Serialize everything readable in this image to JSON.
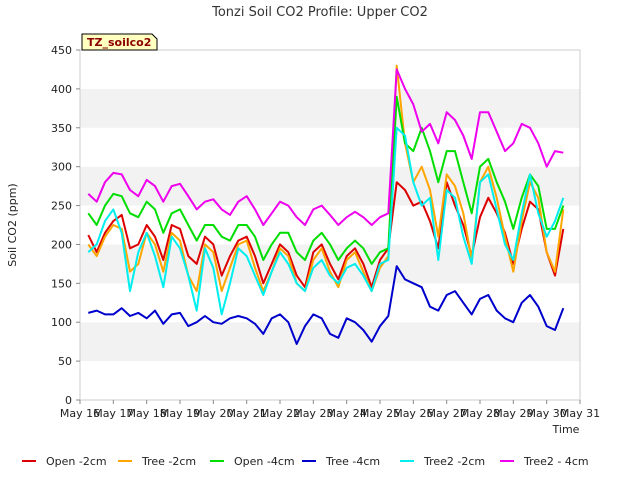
{
  "chart_data": {
    "type": "line",
    "title": "Tonzi Soil CO2 Profile: Upper CO2",
    "xlabel": "Time",
    "ylabel": "Soil CO2 (ppm)",
    "badge": "TZ_soilco2",
    "ylim": [
      0,
      450
    ],
    "yticks": [
      0,
      50,
      100,
      150,
      200,
      250,
      300,
      350,
      400,
      450
    ],
    "xlim": [
      16,
      31
    ],
    "xticks": [
      16,
      17,
      18,
      19,
      20,
      21,
      22,
      23,
      24,
      25,
      26,
      27,
      28,
      29,
      30,
      31
    ],
    "xtick_labels": [
      "May 16",
      "May 17",
      "May 18",
      "May 19",
      "May 20",
      "May 21",
      "May 22",
      "May 23",
      "May 24",
      "May 25",
      "May 26",
      "May 27",
      "May 28",
      "May 29",
      "May 30",
      "May 31"
    ],
    "grid": "horizontal bands",
    "legend_position": "bottom",
    "x": [
      16.25,
      16.5,
      16.75,
      17.0,
      17.25,
      17.5,
      17.75,
      18.0,
      18.25,
      18.5,
      18.75,
      19.0,
      19.25,
      19.5,
      19.75,
      20.0,
      20.25,
      20.5,
      20.75,
      21.0,
      21.25,
      21.5,
      21.75,
      22.0,
      22.25,
      22.5,
      22.75,
      23.0,
      23.25,
      23.5,
      23.75,
      24.0,
      24.25,
      24.5,
      24.75,
      25.0,
      25.25,
      25.5,
      25.75,
      26.0,
      26.25,
      26.5,
      26.75,
      27.0,
      27.25,
      27.5,
      27.75,
      28.0,
      28.25,
      28.5,
      28.75,
      29.0,
      29.25,
      29.5,
      29.75,
      30.0,
      30.25,
      30.5
    ],
    "series": [
      {
        "name": "Open -2cm",
        "color": "#dd0000",
        "values": [
          212,
          190,
          215,
          230,
          238,
          195,
          200,
          225,
          210,
          180,
          225,
          220,
          185,
          175,
          210,
          200,
          160,
          185,
          205,
          210,
          185,
          150,
          175,
          200,
          190,
          160,
          145,
          190,
          200,
          175,
          155,
          185,
          195,
          175,
          145,
          180,
          195,
          280,
          270,
          250,
          255,
          230,
          195,
          280,
          250,
          225,
          185,
          235,
          260,
          240,
          215,
          175,
          220,
          255,
          245,
          190,
          160,
          220
        ]
      },
      {
        "name": "Tree -2cm",
        "color": "#ffa500",
        "values": [
          200,
          185,
          210,
          225,
          220,
          165,
          175,
          215,
          200,
          165,
          215,
          205,
          160,
          140,
          200,
          190,
          140,
          170,
          200,
          205,
          170,
          140,
          165,
          195,
          185,
          150,
          140,
          180,
          195,
          165,
          145,
          180,
          190,
          165,
          140,
          170,
          185,
          430,
          330,
          280,
          300,
          270,
          210,
          290,
          275,
          240,
          180,
          280,
          300,
          260,
          210,
          165,
          230,
          280,
          260,
          190,
          165,
          245
        ]
      },
      {
        "name": "Open -4cm",
        "color": "#00dd00",
        "values": [
          240,
          225,
          250,
          265,
          262,
          240,
          235,
          255,
          245,
          215,
          240,
          245,
          225,
          205,
          225,
          225,
          210,
          205,
          225,
          225,
          210,
          180,
          200,
          215,
          215,
          190,
          180,
          205,
          215,
          200,
          180,
          195,
          205,
          195,
          175,
          190,
          195,
          390,
          330,
          320,
          350,
          320,
          280,
          320,
          320,
          280,
          240,
          300,
          310,
          280,
          255,
          220,
          260,
          290,
          275,
          220,
          220,
          250
        ]
      },
      {
        "name": "Tree -4cm",
        "color": "#0000cc",
        "values": [
          112,
          115,
          110,
          110,
          118,
          108,
          112,
          105,
          115,
          98,
          110,
          112,
          95,
          100,
          108,
          100,
          98,
          105,
          108,
          105,
          98,
          85,
          105,
          110,
          100,
          72,
          95,
          110,
          105,
          85,
          80,
          105,
          100,
          90,
          75,
          95,
          108,
          172,
          155,
          150,
          145,
          120,
          115,
          135,
          140,
          125,
          110,
          130,
          135,
          115,
          105,
          100,
          125,
          135,
          120,
          95,
          90,
          118
        ]
      },
      {
        "name": "Tree2 -2cm",
        "color": "#00eeee",
        "values": [
          190,
          200,
          230,
          245,
          215,
          140,
          190,
          215,
          185,
          145,
          210,
          195,
          160,
          115,
          195,
          170,
          110,
          150,
          195,
          185,
          160,
          135,
          165,
          190,
          175,
          150,
          140,
          170,
          180,
          160,
          150,
          170,
          175,
          160,
          140,
          175,
          180,
          350,
          340,
          280,
          250,
          260,
          180,
          270,
          260,
          210,
          175,
          280,
          290,
          245,
          200,
          180,
          240,
          290,
          240,
          210,
          230,
          260
        ]
      },
      {
        "name": "Tree2 - 4cm",
        "color": "#ee00ee",
        "values": [
          265,
          255,
          280,
          292,
          290,
          270,
          262,
          283,
          275,
          255,
          275,
          278,
          262,
          245,
          255,
          258,
          245,
          238,
          255,
          262,
          245,
          225,
          240,
          255,
          250,
          235,
          225,
          245,
          250,
          238,
          225,
          235,
          242,
          235,
          225,
          235,
          240,
          425,
          400,
          380,
          345,
          355,
          330,
          370,
          360,
          340,
          310,
          370,
          370,
          345,
          320,
          330,
          355,
          350,
          330,
          300,
          320,
          318
        ]
      }
    ]
  }
}
